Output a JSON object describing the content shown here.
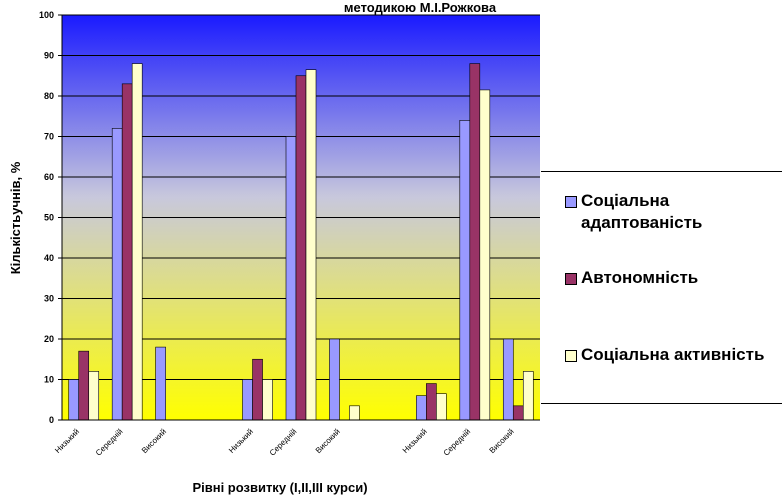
{
  "chart_data": {
    "type": "bar",
    "title": "методикою М.І.Рожкова",
    "y_label": "Кількістьучнів, %",
    "x_label": "Рівні розвитку (І,ІІ,ІІІ курси)",
    "categories": [
      "Низький",
      "Середній",
      "Високий",
      null,
      "Низький",
      "Середній",
      "Високий",
      null,
      "Низький",
      "Середній",
      "Високий"
    ],
    "series": [
      {
        "name": "Соціальна адаптованість",
        "color": "#9999ff",
        "values": [
          10,
          72,
          18,
          null,
          10,
          70,
          20,
          null,
          6,
          74,
          20
        ]
      },
      {
        "name": "Автономність",
        "color": "#993366",
        "values": [
          17,
          83,
          0,
          null,
          15,
          85,
          0,
          null,
          9,
          88,
          3.5
        ]
      },
      {
        "name": "Соціальна активність",
        "color": "#ffffcc",
        "values": [
          12,
          88,
          0,
          null,
          10,
          86.5,
          3.5,
          null,
          6.5,
          81.5,
          12
        ]
      }
    ],
    "ylim": [
      0,
      100
    ],
    "yticks": [
      0,
      10,
      20,
      30,
      40,
      50,
      60,
      70,
      80,
      90,
      100
    ],
    "grid": true
  }
}
